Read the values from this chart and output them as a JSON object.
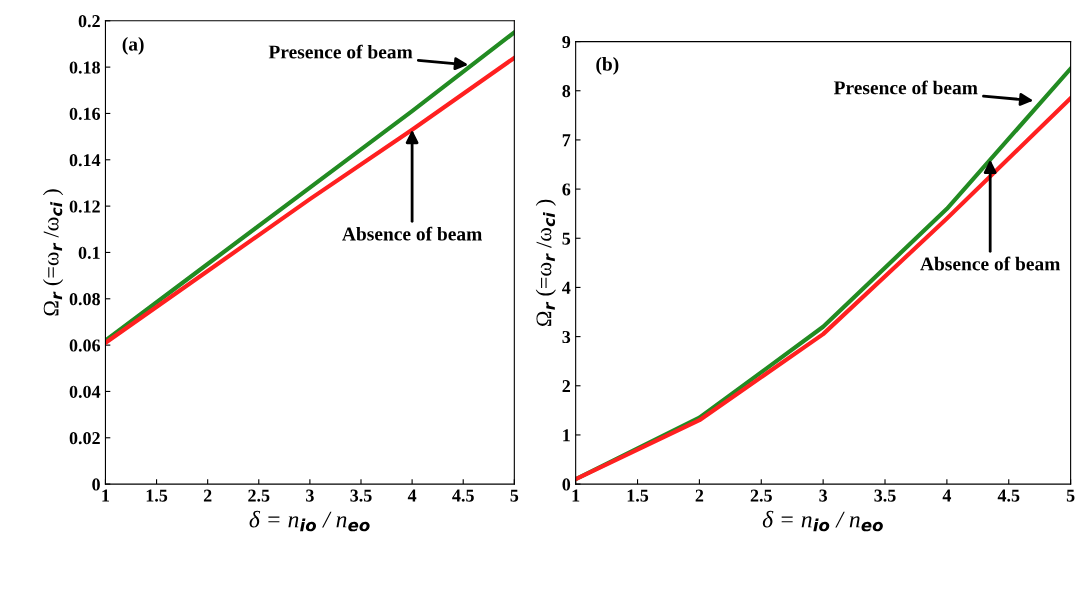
{
  "chart_data": [
    {
      "type": "line",
      "x": [
        1,
        2,
        3,
        4,
        5
      ],
      "xlabel": "δ = n$_{io}$ / n$_{eo}$",
      "ylabel": "Ω$_{r}$ (=ω$_{r}$ /ω$_{ci}$ )",
      "series": [
        {
          "color": "#228b22",
          "values": [
            0.062,
            0.095,
            0.128,
            0.161,
            0.195
          ]
        },
        {
          "color": "#ff2020",
          "values": [
            0.061,
            0.092,
            0.123,
            0.153,
            0.184
          ]
        }
      ],
      "xlim": [
        1,
        5
      ],
      "xticks": [
        1,
        1.5,
        2,
        2.5,
        3,
        3.5,
        4,
        4.5,
        5
      ],
      "ylim": [
        0,
        0.2
      ],
      "yticks": [
        0,
        0.02,
        0.04,
        0.06,
        0.08,
        0.1,
        0.12,
        0.14,
        0.16,
        0.18,
        0.2
      ],
      "annotations": [
        "(a)",
        {
          "text": "Presence of beam",
          "x": 4.55,
          "y": 0.181
        },
        {
          "text": "Absence of beam",
          "x": 4.0,
          "y": 0.153
        }
      ],
      "grid": false,
      "legend": false
    },
    {
      "type": "line",
      "x": [
        1,
        2,
        3,
        4,
        5
      ],
      "xlabel": "δ = n$_{io}$ / n$_{eo}$",
      "ylabel": "Ω$_{r}$ (=ω$_{r}$ /ω$_{ci}$ )",
      "series": [
        {
          "color": "#228b22",
          "values": [
            0.1,
            1.35,
            3.2,
            5.6,
            8.45
          ]
        },
        {
          "color": "#ff2020",
          "values": [
            0.1,
            1.3,
            3.05,
            5.4,
            7.85
          ]
        }
      ],
      "xlim": [
        1,
        5
      ],
      "xticks": [
        1,
        1.5,
        2,
        2.5,
        3,
        3.5,
        4,
        4.5,
        5
      ],
      "ylim": [
        0,
        9
      ],
      "yticks": [
        0,
        1,
        2,
        3,
        4,
        5,
        6,
        7,
        8,
        9
      ],
      "annotations": [
        "(b)",
        {
          "text": "Presence of beam",
          "x": 4.7,
          "y": 7.8
        },
        {
          "text": "Absence of beam",
          "x": 4.35,
          "y": 6.6
        }
      ],
      "grid": false,
      "legend": false
    }
  ]
}
